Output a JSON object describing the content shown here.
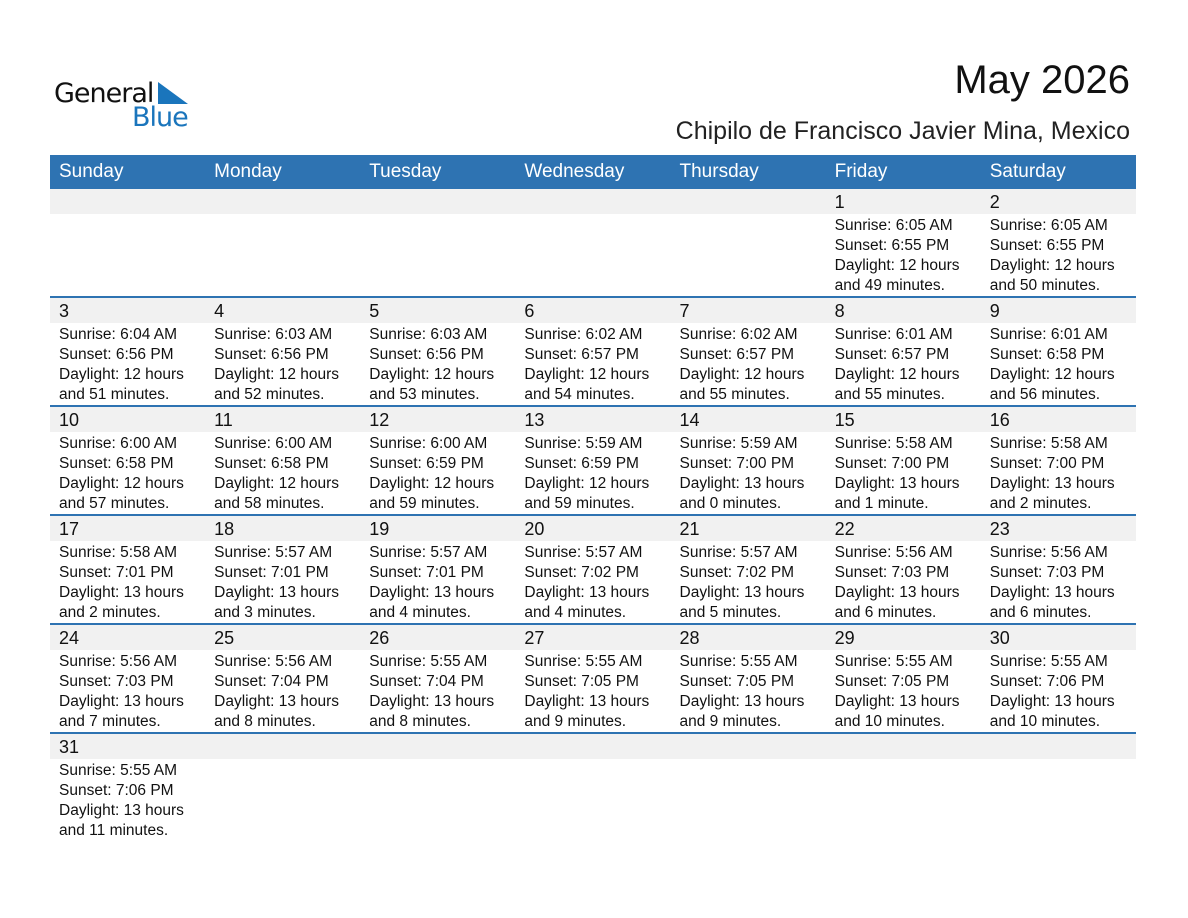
{
  "logo": {
    "line1": "General",
    "line2": "Blue",
    "brand_color": "#1a75bc"
  },
  "title": "May 2026",
  "subtitle": "Chipilo de Francisco Javier Mina, Mexico",
  "header_color": "#2e73b2",
  "weekdays": [
    "Sunday",
    "Monday",
    "Tuesday",
    "Wednesday",
    "Thursday",
    "Friday",
    "Saturday"
  ],
  "weeks": [
    [
      null,
      null,
      null,
      null,
      null,
      {
        "day": "1",
        "sunrise": "Sunrise: 6:05 AM",
        "sunset": "Sunset: 6:55 PM",
        "daylight": "Daylight: 12 hours",
        "minutes": "and 49 minutes."
      },
      {
        "day": "2",
        "sunrise": "Sunrise: 6:05 AM",
        "sunset": "Sunset: 6:55 PM",
        "daylight": "Daylight: 12 hours",
        "minutes": "and 50 minutes."
      }
    ],
    [
      {
        "day": "3",
        "sunrise": "Sunrise: 6:04 AM",
        "sunset": "Sunset: 6:56 PM",
        "daylight": "Daylight: 12 hours",
        "minutes": "and 51 minutes."
      },
      {
        "day": "4",
        "sunrise": "Sunrise: 6:03 AM",
        "sunset": "Sunset: 6:56 PM",
        "daylight": "Daylight: 12 hours",
        "minutes": "and 52 minutes."
      },
      {
        "day": "5",
        "sunrise": "Sunrise: 6:03 AM",
        "sunset": "Sunset: 6:56 PM",
        "daylight": "Daylight: 12 hours",
        "minutes": "and 53 minutes."
      },
      {
        "day": "6",
        "sunrise": "Sunrise: 6:02 AM",
        "sunset": "Sunset: 6:57 PM",
        "daylight": "Daylight: 12 hours",
        "minutes": "and 54 minutes."
      },
      {
        "day": "7",
        "sunrise": "Sunrise: 6:02 AM",
        "sunset": "Sunset: 6:57 PM",
        "daylight": "Daylight: 12 hours",
        "minutes": "and 55 minutes."
      },
      {
        "day": "8",
        "sunrise": "Sunrise: 6:01 AM",
        "sunset": "Sunset: 6:57 PM",
        "daylight": "Daylight: 12 hours",
        "minutes": "and 55 minutes."
      },
      {
        "day": "9",
        "sunrise": "Sunrise: 6:01 AM",
        "sunset": "Sunset: 6:58 PM",
        "daylight": "Daylight: 12 hours",
        "minutes": "and 56 minutes."
      }
    ],
    [
      {
        "day": "10",
        "sunrise": "Sunrise: 6:00 AM",
        "sunset": "Sunset: 6:58 PM",
        "daylight": "Daylight: 12 hours",
        "minutes": "and 57 minutes."
      },
      {
        "day": "11",
        "sunrise": "Sunrise: 6:00 AM",
        "sunset": "Sunset: 6:58 PM",
        "daylight": "Daylight: 12 hours",
        "minutes": "and 58 minutes."
      },
      {
        "day": "12",
        "sunrise": "Sunrise: 6:00 AM",
        "sunset": "Sunset: 6:59 PM",
        "daylight": "Daylight: 12 hours",
        "minutes": "and 59 minutes."
      },
      {
        "day": "13",
        "sunrise": "Sunrise: 5:59 AM",
        "sunset": "Sunset: 6:59 PM",
        "daylight": "Daylight: 12 hours",
        "minutes": "and 59 minutes."
      },
      {
        "day": "14",
        "sunrise": "Sunrise: 5:59 AM",
        "sunset": "Sunset: 7:00 PM",
        "daylight": "Daylight: 13 hours",
        "minutes": "and 0 minutes."
      },
      {
        "day": "15",
        "sunrise": "Sunrise: 5:58 AM",
        "sunset": "Sunset: 7:00 PM",
        "daylight": "Daylight: 13 hours",
        "minutes": "and 1 minute."
      },
      {
        "day": "16",
        "sunrise": "Sunrise: 5:58 AM",
        "sunset": "Sunset: 7:00 PM",
        "daylight": "Daylight: 13 hours",
        "minutes": "and 2 minutes."
      }
    ],
    [
      {
        "day": "17",
        "sunrise": "Sunrise: 5:58 AM",
        "sunset": "Sunset: 7:01 PM",
        "daylight": "Daylight: 13 hours",
        "minutes": "and 2 minutes."
      },
      {
        "day": "18",
        "sunrise": "Sunrise: 5:57 AM",
        "sunset": "Sunset: 7:01 PM",
        "daylight": "Daylight: 13 hours",
        "minutes": "and 3 minutes."
      },
      {
        "day": "19",
        "sunrise": "Sunrise: 5:57 AM",
        "sunset": "Sunset: 7:01 PM",
        "daylight": "Daylight: 13 hours",
        "minutes": "and 4 minutes."
      },
      {
        "day": "20",
        "sunrise": "Sunrise: 5:57 AM",
        "sunset": "Sunset: 7:02 PM",
        "daylight": "Daylight: 13 hours",
        "minutes": "and 4 minutes."
      },
      {
        "day": "21",
        "sunrise": "Sunrise: 5:57 AM",
        "sunset": "Sunset: 7:02 PM",
        "daylight": "Daylight: 13 hours",
        "minutes": "and 5 minutes."
      },
      {
        "day": "22",
        "sunrise": "Sunrise: 5:56 AM",
        "sunset": "Sunset: 7:03 PM",
        "daylight": "Daylight: 13 hours",
        "minutes": "and 6 minutes."
      },
      {
        "day": "23",
        "sunrise": "Sunrise: 5:56 AM",
        "sunset": "Sunset: 7:03 PM",
        "daylight": "Daylight: 13 hours",
        "minutes": "and 6 minutes."
      }
    ],
    [
      {
        "day": "24",
        "sunrise": "Sunrise: 5:56 AM",
        "sunset": "Sunset: 7:03 PM",
        "daylight": "Daylight: 13 hours",
        "minutes": "and 7 minutes."
      },
      {
        "day": "25",
        "sunrise": "Sunrise: 5:56 AM",
        "sunset": "Sunset: 7:04 PM",
        "daylight": "Daylight: 13 hours",
        "minutes": "and 8 minutes."
      },
      {
        "day": "26",
        "sunrise": "Sunrise: 5:55 AM",
        "sunset": "Sunset: 7:04 PM",
        "daylight": "Daylight: 13 hours",
        "minutes": "and 8 minutes."
      },
      {
        "day": "27",
        "sunrise": "Sunrise: 5:55 AM",
        "sunset": "Sunset: 7:05 PM",
        "daylight": "Daylight: 13 hours",
        "minutes": "and 9 minutes."
      },
      {
        "day": "28",
        "sunrise": "Sunrise: 5:55 AM",
        "sunset": "Sunset: 7:05 PM",
        "daylight": "Daylight: 13 hours",
        "minutes": "and 9 minutes."
      },
      {
        "day": "29",
        "sunrise": "Sunrise: 5:55 AM",
        "sunset": "Sunset: 7:05 PM",
        "daylight": "Daylight: 13 hours",
        "minutes": "and 10 minutes."
      },
      {
        "day": "30",
        "sunrise": "Sunrise: 5:55 AM",
        "sunset": "Sunset: 7:06 PM",
        "daylight": "Daylight: 13 hours",
        "minutes": "and 10 minutes."
      }
    ],
    [
      {
        "day": "31",
        "sunrise": "Sunrise: 5:55 AM",
        "sunset": "Sunset: 7:06 PM",
        "daylight": "Daylight: 13 hours",
        "minutes": "and 11 minutes."
      },
      null,
      null,
      null,
      null,
      null,
      null
    ]
  ]
}
